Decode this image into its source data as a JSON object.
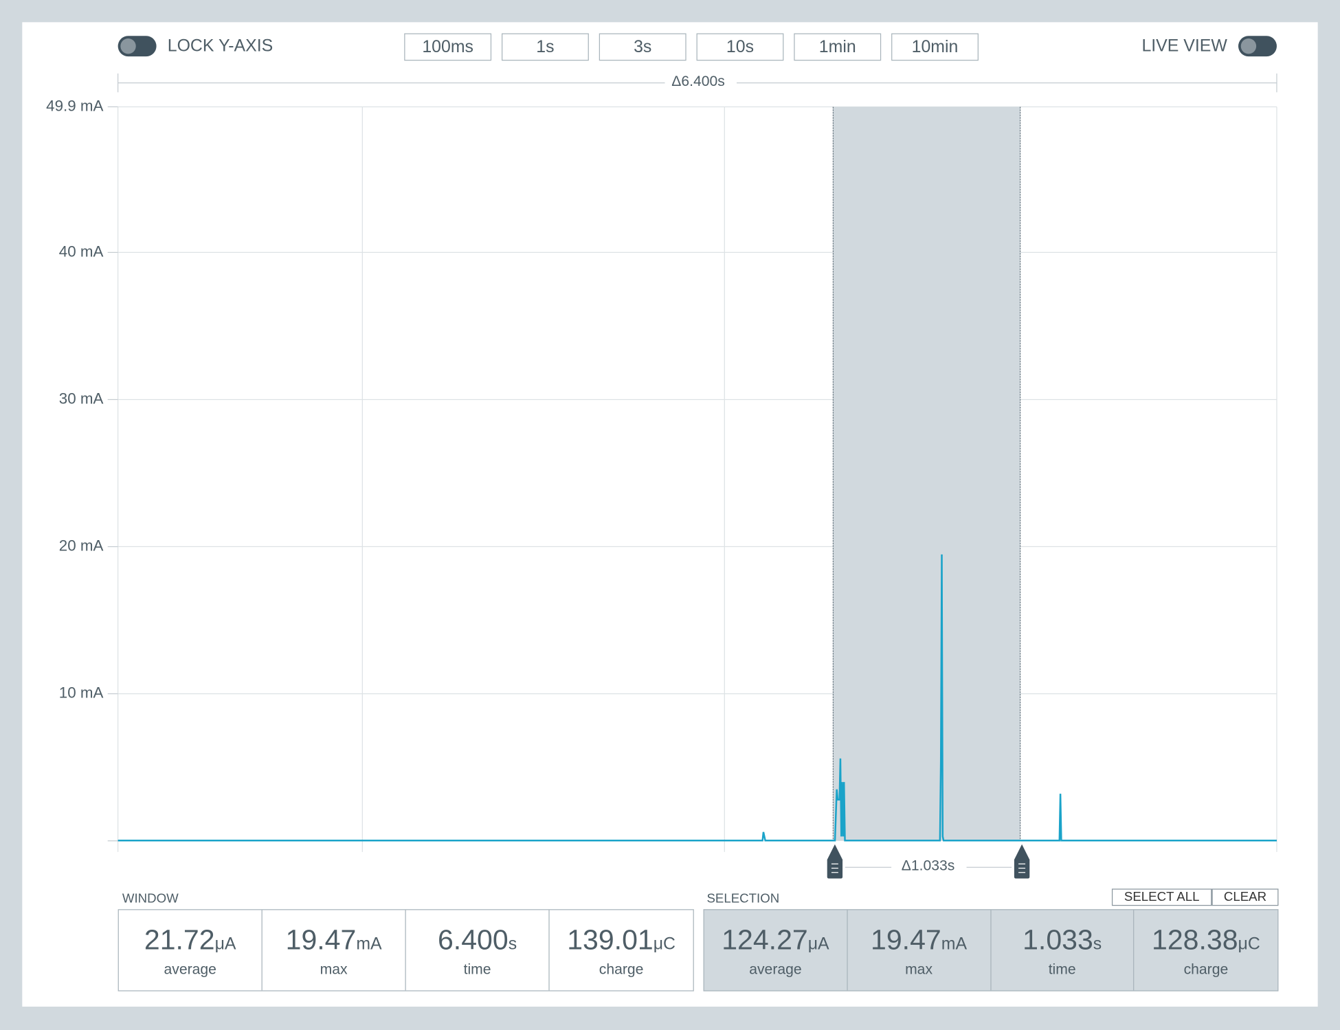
{
  "toolbar": {
    "lock_y_axis": "LOCK Y-AXIS",
    "durations": [
      "100ms",
      "1s",
      "3s",
      "10s",
      "1min",
      "10min"
    ],
    "live_view": "LIVE VIEW"
  },
  "window_span": "Δ6.400s",
  "selection_span": "Δ1.033s",
  "chart_data": {
    "type": "line",
    "x": [
      0,
      3.56,
      3.565,
      3.575,
      3.96,
      3.97,
      3.975,
      3.985,
      3.99,
      3.995,
      4.0,
      4.005,
      4.01,
      4.015,
      4.54,
      4.545,
      4.55,
      4.555,
      4.56,
      5.2,
      5.205,
      5.21,
      6.4
    ],
    "values": [
      0.02,
      0.02,
      0.6,
      0.02,
      0.02,
      3.5,
      2.8,
      2.8,
      5.6,
      0.3,
      4.0,
      0.3,
      4.0,
      0.02,
      0.02,
      5.4,
      19.47,
      0.3,
      0.02,
      0.02,
      3.2,
      0.02,
      0.02
    ],
    "color": "#1aa3c9",
    "xlim": [
      0,
      6.4
    ],
    "xticks": [
      1.35,
      3.35
    ],
    "ylim": [
      0,
      49.9
    ],
    "yticks": [
      {
        "value": 49.9,
        "label": "49.9 mA"
      },
      {
        "value": 40,
        "label": "40 mA"
      },
      {
        "value": 30,
        "label": "30 mA"
      },
      {
        "value": 20,
        "label": "20 mA"
      },
      {
        "value": 10,
        "label": "10 mA"
      }
    ],
    "grid": true,
    "selection": [
      3.95,
      4.983
    ]
  },
  "window_stats": {
    "title": "WINDOW",
    "items": [
      {
        "value": "21.72",
        "unit": "μA",
        "label": "average"
      },
      {
        "value": "19.47",
        "unit": "mA",
        "label": "max"
      },
      {
        "value": "6.400",
        "unit": "s",
        "label": "time"
      },
      {
        "value": "139.01",
        "unit": "μC",
        "label": "charge"
      }
    ]
  },
  "selection_stats": {
    "title": "SELECTION",
    "buttons": [
      "SELECT ALL",
      "CLEAR"
    ],
    "items": [
      {
        "value": "124.27",
        "unit": "μA",
        "label": "average"
      },
      {
        "value": "19.47",
        "unit": "mA",
        "label": "max"
      },
      {
        "value": "1.033",
        "unit": "s",
        "label": "time"
      },
      {
        "value": "128.38",
        "unit": "μC",
        "label": "charge"
      }
    ]
  }
}
